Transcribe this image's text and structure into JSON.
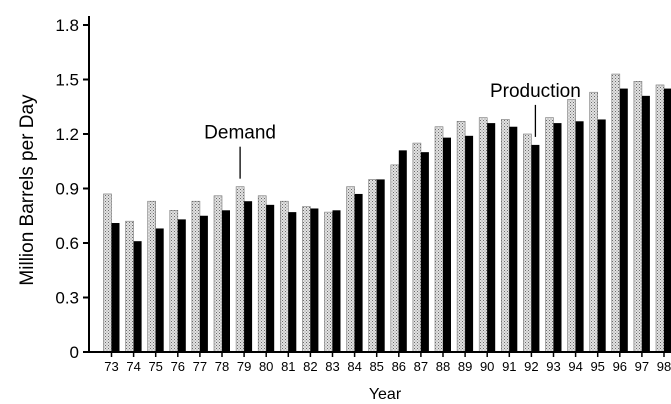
{
  "chart_data": {
    "type": "bar",
    "ylabel": "Million Barrels per Day",
    "xlabel": "Year",
    "ylim": [
      0,
      1.8
    ],
    "yticks": [
      "0",
      "0.3",
      "0.6",
      "0.9",
      "1.2",
      "1.5",
      "1.8"
    ],
    "categories": [
      "73",
      "74",
      "75",
      "76",
      "77",
      "78",
      "79",
      "80",
      "81",
      "82",
      "83",
      "84",
      "85",
      "86",
      "87",
      "88",
      "89",
      "90",
      "91",
      "92",
      "93",
      "94",
      "95",
      "96",
      "97",
      "98"
    ],
    "series": [
      {
        "name": "Demand",
        "color": "#c8c8c8",
        "values": [
          0.87,
          0.72,
          0.83,
          0.78,
          0.83,
          0.86,
          0.91,
          0.86,
          0.83,
          0.8,
          0.77,
          0.91,
          0.95,
          1.03,
          1.15,
          1.24,
          1.27,
          1.29,
          1.28,
          1.2,
          1.29,
          1.39,
          1.43,
          1.53,
          1.49,
          1.47
        ]
      },
      {
        "name": "Production",
        "color": "#000000",
        "values": [
          0.71,
          0.61,
          0.68,
          0.73,
          0.75,
          0.78,
          0.83,
          0.81,
          0.77,
          0.79,
          0.78,
          0.87,
          0.95,
          1.11,
          1.1,
          1.18,
          1.19,
          1.26,
          1.24,
          1.14,
          1.26,
          1.27,
          1.28,
          1.45,
          1.41,
          1.45
        ]
      }
    ],
    "annotations": [
      {
        "text": "Demand",
        "category": "79",
        "series": "Demand"
      },
      {
        "text": "Production",
        "category": "92",
        "series": "Production"
      }
    ]
  }
}
